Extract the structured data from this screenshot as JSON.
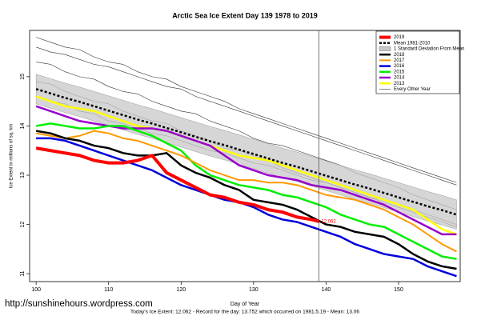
{
  "chart_data": {
    "type": "line",
    "title": "Arctic Sea Ice Extent Day 139 1978 to 2019",
    "xlabel": "Day of Year",
    "ylabel": "Ice Extent in millions of sq. km",
    "footer": "Today's Ice Extent: 12.062  - Record for the day: 13.752 which occurred on 1981.5.19  - Mean: 13.06",
    "source": "http://sunshinehours.wordpress.com",
    "legend": "top-right",
    "xlim": [
      99.1,
      158.5
    ],
    "xticks": [
      100,
      110,
      120,
      130,
      140,
      150
    ],
    "ylim": [
      10.84,
      15.94
    ],
    "yticks": [
      11,
      12,
      13,
      14,
      15
    ],
    "vline": 139,
    "x": [
      100,
      102,
      104,
      106,
      108,
      110,
      112,
      114,
      116,
      118,
      120,
      122,
      124,
      126,
      128,
      130,
      132,
      134,
      136,
      138,
      140,
      142,
      144,
      146,
      148,
      150,
      152,
      154,
      156,
      158
    ],
    "band": {
      "name": "1 Standard Deviation From Mean",
      "color": "#c8c8c8",
      "lower": [
        14.45,
        14.36,
        14.27,
        14.19,
        14.1,
        14.01,
        13.92,
        13.83,
        13.75,
        13.66,
        13.57,
        13.48,
        13.39,
        13.31,
        13.22,
        13.13,
        13.04,
        12.95,
        12.87,
        12.78,
        12.69,
        12.6,
        12.51,
        12.43,
        12.34,
        12.25,
        12.16,
        12.07,
        11.99,
        11.9
      ],
      "upper": [
        15.05,
        14.96,
        14.87,
        14.79,
        14.7,
        14.61,
        14.52,
        14.43,
        14.35,
        14.26,
        14.17,
        14.08,
        13.99,
        13.91,
        13.82,
        13.73,
        13.64,
        13.55,
        13.47,
        13.38,
        13.29,
        13.2,
        13.11,
        13.03,
        12.94,
        12.85,
        12.76,
        12.67,
        12.59,
        12.5
      ]
    },
    "series": [
      {
        "name": "2019",
        "color": "#ff0000",
        "width": 4,
        "x": [
          100,
          102,
          104,
          106,
          108,
          110,
          112,
          114,
          116,
          118,
          120,
          122,
          124,
          126,
          128,
          130,
          132,
          134,
          136,
          138,
          139
        ],
        "values": [
          13.55,
          13.5,
          13.45,
          13.4,
          13.3,
          13.25,
          13.25,
          13.3,
          13.4,
          13.05,
          12.9,
          12.75,
          12.6,
          12.55,
          12.45,
          12.4,
          12.3,
          12.25,
          12.15,
          12.1,
          12.062
        ]
      },
      {
        "name": "Mean 1981-2010",
        "color": "#000000",
        "width": 2.5,
        "dash": true,
        "values": [
          14.75,
          14.66,
          14.57,
          14.49,
          14.4,
          14.31,
          14.22,
          14.13,
          14.05,
          13.96,
          13.87,
          13.78,
          13.69,
          13.61,
          13.52,
          13.43,
          13.34,
          13.25,
          13.17,
          13.08,
          12.99,
          12.9,
          12.81,
          12.73,
          12.64,
          12.55,
          12.46,
          12.37,
          12.29,
          12.2
        ]
      },
      {
        "name": "2018",
        "color": "#000000",
        "width": 2.5,
        "values": [
          13.9,
          13.85,
          13.75,
          13.7,
          13.6,
          13.55,
          13.45,
          13.4,
          13.4,
          13.45,
          13.2,
          13.05,
          12.95,
          12.8,
          12.7,
          12.5,
          12.45,
          12.4,
          12.3,
          12.15,
          12.0,
          11.95,
          11.85,
          11.8,
          11.75,
          11.6,
          11.4,
          11.25,
          11.15,
          11.1
        ]
      },
      {
        "name": "2017",
        "color": "#ff9900",
        "width": 2,
        "values": [
          13.85,
          13.8,
          13.75,
          13.8,
          13.9,
          13.85,
          13.75,
          13.7,
          13.6,
          13.5,
          13.4,
          13.25,
          13.1,
          13.0,
          12.9,
          12.9,
          12.85,
          12.85,
          12.8,
          12.7,
          12.6,
          12.55,
          12.5,
          12.4,
          12.3,
          12.15,
          12.0,
          11.8,
          11.6,
          11.45
        ]
      },
      {
        "name": "2016",
        "color": "#0000dd",
        "width": 2.5,
        "values": [
          13.75,
          13.75,
          13.7,
          13.6,
          13.5,
          13.4,
          13.3,
          13.2,
          13.1,
          12.95,
          12.8,
          12.7,
          12.6,
          12.5,
          12.45,
          12.35,
          12.2,
          12.1,
          12.05,
          11.95,
          11.85,
          11.75,
          11.6,
          11.5,
          11.4,
          11.35,
          11.3,
          11.15,
          11.05,
          10.95
        ]
      },
      {
        "name": "2015",
        "color": "#00ee00",
        "width": 2.5,
        "values": [
          14.0,
          14.05,
          14.0,
          13.95,
          13.95,
          14.0,
          14.0,
          13.9,
          13.8,
          13.65,
          13.5,
          13.2,
          13.0,
          12.9,
          12.8,
          12.75,
          12.7,
          12.6,
          12.55,
          12.45,
          12.35,
          12.2,
          12.1,
          12.0,
          11.95,
          11.8,
          11.65,
          11.5,
          11.35,
          11.3
        ]
      },
      {
        "name": "2014",
        "color": "#9900cc",
        "width": 2.5,
        "values": [
          14.4,
          14.3,
          14.2,
          14.1,
          14.05,
          14.0,
          13.95,
          13.95,
          13.95,
          13.9,
          13.8,
          13.7,
          13.6,
          13.4,
          13.2,
          13.1,
          13.0,
          12.95,
          12.9,
          12.8,
          12.75,
          12.7,
          12.6,
          12.5,
          12.4,
          12.25,
          12.1,
          11.95,
          11.8,
          11.8
        ]
      },
      {
        "name": "2013",
        "color": "#ffff00",
        "width": 2.5,
        "values": [
          14.6,
          14.5,
          14.4,
          14.35,
          14.3,
          14.2,
          14.1,
          14.0,
          13.95,
          13.9,
          13.8,
          13.7,
          13.6,
          13.5,
          13.4,
          13.35,
          13.3,
          13.2,
          13.1,
          13.0,
          12.9,
          12.8,
          12.7,
          12.6,
          12.5,
          12.4,
          12.3,
          12.1,
          11.9,
          11.8
        ]
      }
    ],
    "other_years": {
      "name": "Every Other Year",
      "color": "#333333",
      "lines": [
        [
          15.6,
          15.5,
          15.45,
          15.35,
          15.25,
          15.2,
          15.1,
          15.0,
          14.9,
          14.8,
          14.75,
          14.6,
          14.5,
          14.4,
          14.3,
          14.2,
          14.1,
          14.0,
          13.9,
          13.8,
          13.7,
          13.6,
          13.5,
          13.4,
          13.3,
          13.2,
          13.1,
          13.0,
          12.9,
          12.8
        ],
        [
          15.3,
          15.25,
          15.1,
          15.0,
          14.95,
          14.8,
          14.7,
          14.65,
          14.5,
          14.4,
          14.3,
          14.25,
          14.1,
          14.0,
          13.9,
          13.75,
          13.65,
          13.6,
          13.5,
          13.4,
          13.3,
          13.2,
          13.05,
          12.95,
          12.85,
          12.75,
          12.6,
          12.5,
          12.4,
          12.3
        ],
        [
          14.9,
          14.85,
          14.7,
          14.6,
          14.5,
          14.45,
          14.3,
          14.2,
          14.1,
          14.05,
          13.9,
          13.8,
          13.7,
          13.55,
          13.5,
          13.4,
          13.3,
          13.15,
          13.05,
          12.95,
          12.85,
          12.75,
          12.65,
          12.55,
          12.45,
          12.35,
          12.25,
          12.15,
          12.05,
          11.95
        ],
        [
          15.8,
          15.7,
          15.6,
          15.55,
          15.4,
          15.3,
          15.25,
          15.1,
          15.0,
          14.95,
          14.8,
          14.7,
          14.6,
          14.5,
          14.35,
          14.25,
          14.15,
          14.05,
          13.95,
          13.85,
          13.75,
          13.65,
          13.55,
          13.45,
          13.35,
          13.25,
          13.15,
          13.05,
          12.95,
          12.85
        ],
        [
          14.6,
          14.5,
          14.45,
          14.3,
          14.25,
          14.1,
          14.05,
          13.95,
          13.85,
          13.8,
          13.7,
          13.6,
          13.5,
          13.45,
          13.35,
          13.25,
          13.2,
          13.1,
          13.0,
          12.9,
          12.85,
          12.75,
          12.65,
          12.55,
          12.5,
          12.4,
          12.3,
          12.2,
          12.1,
          12.0
        ]
      ]
    }
  }
}
